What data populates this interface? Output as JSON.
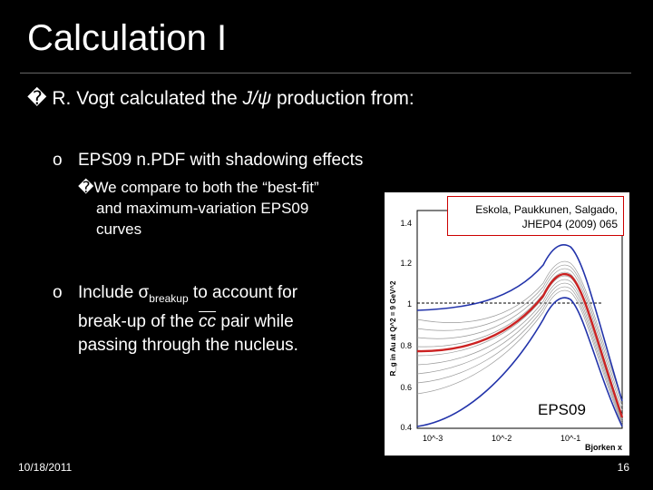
{
  "slide": {
    "title": "Calculation I",
    "bullet1": {
      "box": "�",
      "pre": "R. Vogt calculated the ",
      "italic": "J/ψ",
      "post": " production from:"
    },
    "sub1": {
      "marker": "o",
      "text": "EPS09 n.PDF with shadowing effects"
    },
    "subsub": {
      "box": "�",
      "line1": "We compare to both the “best-fit”",
      "line2": "and maximum-variation EPS09",
      "line3": "curves"
    },
    "sub2": {
      "marker": "o",
      "pre": "Include ",
      "sigma": "σ",
      "sigma_sub": "breakup",
      "mid": " to account for",
      "line2_pre": "break-up of the ",
      "cc": "cc",
      "line2_post": " pair while",
      "line3": "passing through the nucleus."
    },
    "footer": {
      "date": "10/18/2011",
      "page": "16"
    }
  },
  "figure": {
    "reference_line1": "Eskola, Paukkunen, Salgado,",
    "reference_line2": "JHEP04 (2009) 065",
    "label": "EPS09",
    "ylabel": "R_g in Au at Q^2 = 9 GeV^2",
    "xlabel": "Bjorken x",
    "yticks": [
      "0.4",
      "0.6",
      "0.8",
      "1",
      "1.2",
      "1.4"
    ],
    "xticks": [
      "10^-3",
      "10^-2",
      "10^-1"
    ]
  },
  "colors": {
    "background": "#000000",
    "text": "#ffffff",
    "best_fit": "#cc2222",
    "max_variation": "#2233aa",
    "error_band": "#888888",
    "ref_border": "#cc0000"
  }
}
